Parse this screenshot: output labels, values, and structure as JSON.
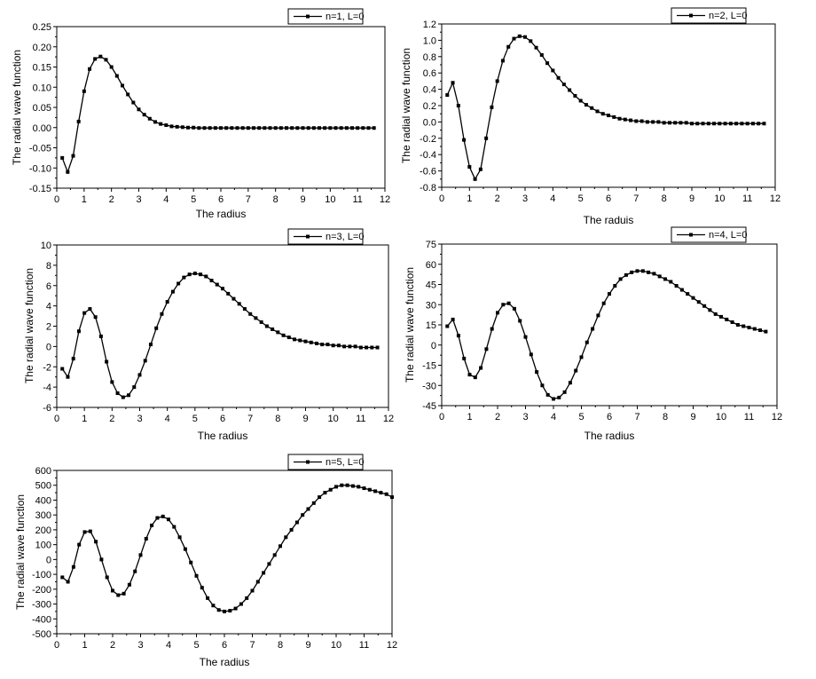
{
  "chart_data": [
    {
      "type": "line",
      "legend_position": "top-right",
      "xlabel": "The radius",
      "ylabel": "The radial wave function",
      "xlim": [
        0,
        12
      ],
      "ylim": [
        -0.15,
        0.25
      ],
      "xticks": [
        "0",
        "1",
        "2",
        "3",
        "4",
        "5",
        "6",
        "7",
        "8",
        "9",
        "10",
        "11",
        "12"
      ],
      "yticks": [
        "-0.15",
        "-0.10",
        "-0.05",
        "0.00",
        "0.05",
        "0.10",
        "0.15",
        "0.20",
        "0.25"
      ],
      "series": [
        {
          "name": "n=1, L=0",
          "x": [
            0.2,
            0.4,
            0.6,
            0.8,
            1.0,
            1.2,
            1.4,
            1.6,
            1.8,
            2.0,
            2.2,
            2.4,
            2.6,
            2.8,
            3.0,
            3.2,
            3.4,
            3.6,
            3.8,
            4.0,
            4.2,
            4.4,
            4.6,
            4.8,
            5.0,
            5.2,
            5.4,
            5.6,
            5.8,
            6.0,
            6.2,
            6.4,
            6.6,
            6.8,
            7.0,
            7.2,
            7.4,
            7.6,
            7.8,
            8.0,
            8.2,
            8.4,
            8.6,
            8.8,
            9.0,
            9.2,
            9.4,
            9.6,
            9.8,
            10.0,
            10.2,
            10.4,
            10.6,
            10.8,
            11.0,
            11.2,
            11.4,
            11.6
          ],
          "y": [
            -0.075,
            -0.11,
            -0.07,
            0.015,
            0.09,
            0.145,
            0.17,
            0.176,
            0.168,
            0.15,
            0.128,
            0.104,
            0.082,
            0.062,
            0.045,
            0.032,
            0.022,
            0.014,
            0.009,
            0.006,
            0.003,
            0.002,
            0.001,
            0.0,
            0.0,
            -0.001,
            -0.001,
            -0.001,
            -0.001,
            -0.001,
            -0.001,
            -0.001,
            -0.001,
            -0.001,
            -0.001,
            -0.001,
            -0.001,
            -0.001,
            -0.001,
            -0.001,
            -0.001,
            -0.001,
            -0.001,
            -0.001,
            -0.001,
            -0.001,
            -0.001,
            -0.001,
            -0.001,
            -0.001,
            -0.001,
            -0.001,
            -0.001,
            -0.001,
            -0.001,
            -0.001,
            -0.001,
            -0.001
          ]
        }
      ]
    },
    {
      "type": "line",
      "legend_position": "top-right",
      "xlabel": "The raduis",
      "ylabel": "The radial wave function",
      "xlim": [
        0,
        12
      ],
      "ylim": [
        -0.8,
        1.2
      ],
      "xticks": [
        "0",
        "1",
        "2",
        "3",
        "4",
        "5",
        "6",
        "7",
        "8",
        "9",
        "10",
        "11",
        "12"
      ],
      "yticks": [
        "-0.8",
        "-0.6",
        "-0.4",
        "-0.2",
        "0.0",
        "0.2",
        "0.4",
        "0.6",
        "0.8",
        "1.0",
        "1.2"
      ],
      "series": [
        {
          "name": "n=2, L=0",
          "x": [
            0.2,
            0.4,
            0.6,
            0.8,
            1.0,
            1.2,
            1.4,
            1.6,
            1.8,
            2.0,
            2.2,
            2.4,
            2.6,
            2.8,
            3.0,
            3.2,
            3.4,
            3.6,
            3.8,
            4.0,
            4.2,
            4.4,
            4.6,
            4.8,
            5.0,
            5.2,
            5.4,
            5.6,
            5.8,
            6.0,
            6.2,
            6.4,
            6.6,
            6.8,
            7.0,
            7.2,
            7.4,
            7.6,
            7.8,
            8.0,
            8.2,
            8.4,
            8.6,
            8.8,
            9.0,
            9.2,
            9.4,
            9.6,
            9.8,
            10.0,
            10.2,
            10.4,
            10.6,
            10.8,
            11.0,
            11.2,
            11.4,
            11.6
          ],
          "y": [
            0.33,
            0.48,
            0.2,
            -0.22,
            -0.55,
            -0.7,
            -0.58,
            -0.2,
            0.18,
            0.5,
            0.75,
            0.92,
            1.02,
            1.05,
            1.04,
            0.99,
            0.91,
            0.82,
            0.72,
            0.63,
            0.54,
            0.46,
            0.39,
            0.32,
            0.26,
            0.21,
            0.17,
            0.13,
            0.1,
            0.08,
            0.06,
            0.04,
            0.03,
            0.02,
            0.01,
            0.01,
            0.0,
            0.0,
            0.0,
            -0.01,
            -0.01,
            -0.01,
            -0.01,
            -0.01,
            -0.02,
            -0.02,
            -0.02,
            -0.02,
            -0.02,
            -0.02,
            -0.02,
            -0.02,
            -0.02,
            -0.02,
            -0.02,
            -0.02,
            -0.02,
            -0.02
          ]
        }
      ]
    },
    {
      "type": "line",
      "legend_position": "top-right",
      "xlabel": "The radius",
      "ylabel": "The radial wave function",
      "xlim": [
        0,
        12
      ],
      "ylim": [
        -6,
        10
      ],
      "xticks": [
        "0",
        "1",
        "2",
        "3",
        "4",
        "5",
        "6",
        "7",
        "8",
        "9",
        "10",
        "11",
        "12"
      ],
      "yticks": [
        "-6",
        "-4",
        "-2",
        "0",
        "2",
        "4",
        "6",
        "8",
        "10"
      ],
      "series": [
        {
          "name": "n=3, L=0",
          "x": [
            0.2,
            0.4,
            0.6,
            0.8,
            1.0,
            1.2,
            1.4,
            1.6,
            1.8,
            2.0,
            2.2,
            2.4,
            2.6,
            2.8,
            3.0,
            3.2,
            3.4,
            3.6,
            3.8,
            4.0,
            4.2,
            4.4,
            4.6,
            4.8,
            5.0,
            5.2,
            5.4,
            5.6,
            5.8,
            6.0,
            6.2,
            6.4,
            6.6,
            6.8,
            7.0,
            7.2,
            7.4,
            7.6,
            7.8,
            8.0,
            8.2,
            8.4,
            8.6,
            8.8,
            9.0,
            9.2,
            9.4,
            9.6,
            9.8,
            10.0,
            10.2,
            10.4,
            10.6,
            10.8,
            11.0,
            11.2,
            11.4,
            11.6
          ],
          "y": [
            -2.2,
            -3.0,
            -1.2,
            1.5,
            3.3,
            3.7,
            2.9,
            1.0,
            -1.5,
            -3.5,
            -4.6,
            -5.0,
            -4.8,
            -4.0,
            -2.8,
            -1.4,
            0.2,
            1.8,
            3.2,
            4.4,
            5.4,
            6.2,
            6.8,
            7.1,
            7.2,
            7.1,
            6.9,
            6.5,
            6.1,
            5.7,
            5.2,
            4.7,
            4.2,
            3.7,
            3.2,
            2.8,
            2.4,
            2.0,
            1.7,
            1.4,
            1.1,
            0.9,
            0.7,
            0.6,
            0.5,
            0.4,
            0.3,
            0.2,
            0.2,
            0.1,
            0.1,
            0.0,
            0.0,
            0.0,
            -0.1,
            -0.1,
            -0.1,
            -0.1
          ]
        }
      ]
    },
    {
      "type": "line",
      "legend_position": "top-right",
      "xlabel": "The radius",
      "ylabel": "The radial wave function",
      "xlim": [
        0,
        12
      ],
      "ylim": [
        -45,
        75
      ],
      "xticks": [
        "0",
        "1",
        "2",
        "3",
        "4",
        "5",
        "6",
        "7",
        "8",
        "9",
        "10",
        "11",
        "12"
      ],
      "yticks": [
        "-45",
        "-30",
        "-15",
        "0",
        "15",
        "30",
        "45",
        "60",
        "75"
      ],
      "series": [
        {
          "name": "n=4, L=0",
          "x": [
            0.2,
            0.4,
            0.6,
            0.8,
            1.0,
            1.2,
            1.4,
            1.6,
            1.8,
            2.0,
            2.2,
            2.4,
            2.6,
            2.8,
            3.0,
            3.2,
            3.4,
            3.6,
            3.8,
            4.0,
            4.2,
            4.4,
            4.6,
            4.8,
            5.0,
            5.2,
            5.4,
            5.6,
            5.8,
            6.0,
            6.2,
            6.4,
            6.6,
            6.8,
            7.0,
            7.2,
            7.4,
            7.6,
            7.8,
            8.0,
            8.2,
            8.4,
            8.6,
            8.8,
            9.0,
            9.2,
            9.4,
            9.6,
            9.8,
            10.0,
            10.2,
            10.4,
            10.6,
            10.8,
            11.0,
            11.2,
            11.4,
            11.6
          ],
          "y": [
            14,
            19,
            7,
            -10,
            -22,
            -24,
            -17,
            -3,
            12,
            24,
            30,
            31,
            27,
            18,
            6,
            -7,
            -20,
            -30,
            -37,
            -40,
            -39,
            -35,
            -28,
            -19,
            -9,
            2,
            12,
            22,
            31,
            38,
            44,
            49,
            52,
            54,
            55,
            55,
            54,
            53,
            51,
            49,
            47,
            44,
            41,
            38,
            35,
            32,
            29,
            26,
            23,
            21,
            19,
            17,
            15,
            14,
            13,
            12,
            11,
            10
          ]
        }
      ]
    },
    {
      "type": "line",
      "legend_position": "top-right",
      "xlabel": "The radius",
      "ylabel": "The radial wave function",
      "xlim": [
        0,
        12
      ],
      "ylim": [
        -500,
        600
      ],
      "xticks": [
        "0",
        "1",
        "2",
        "3",
        "4",
        "5",
        "6",
        "7",
        "8",
        "9",
        "10",
        "11",
        "12"
      ],
      "yticks": [
        "-500",
        "-400",
        "-300",
        "-200",
        "-100",
        "0",
        "100",
        "200",
        "300",
        "400",
        "500",
        "600"
      ],
      "series": [
        {
          "name": "n=5, L=0",
          "x": [
            0.2,
            0.4,
            0.6,
            0.8,
            1.0,
            1.2,
            1.4,
            1.6,
            1.8,
            2.0,
            2.2,
            2.4,
            2.6,
            2.8,
            3.0,
            3.2,
            3.4,
            3.6,
            3.8,
            4.0,
            4.2,
            4.4,
            4.6,
            4.8,
            5.0,
            5.2,
            5.4,
            5.6,
            5.8,
            6.0,
            6.2,
            6.4,
            6.6,
            6.8,
            7.0,
            7.2,
            7.4,
            7.6,
            7.8,
            8.0,
            8.2,
            8.4,
            8.6,
            8.8,
            9.0,
            9.2,
            9.4,
            9.6,
            9.8,
            10.0,
            10.2,
            10.4,
            10.6,
            10.8,
            11.0,
            11.2,
            11.4,
            11.6,
            11.8,
            12.0
          ],
          "y": [
            -120,
            -150,
            -50,
            100,
            185,
            190,
            120,
            0,
            -120,
            -210,
            -240,
            -230,
            -170,
            -80,
            30,
            140,
            230,
            280,
            290,
            270,
            220,
            150,
            70,
            -20,
            -110,
            -190,
            -260,
            -310,
            -340,
            -350,
            -345,
            -330,
            -300,
            -260,
            -210,
            -150,
            -90,
            -30,
            30,
            90,
            150,
            200,
            250,
            300,
            340,
            380,
            420,
            450,
            470,
            490,
            500,
            500,
            495,
            490,
            480,
            470,
            460,
            450,
            440,
            420
          ]
        }
      ]
    }
  ]
}
